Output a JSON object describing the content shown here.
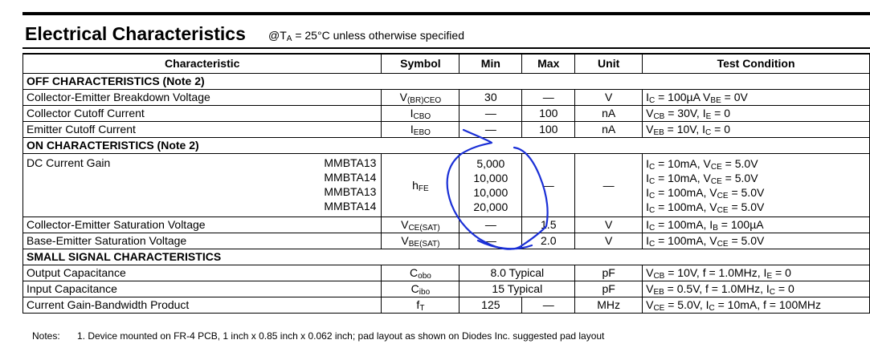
{
  "header": {
    "title": "Electrical Characteristics",
    "condition_prefix": "@T",
    "condition_sub": "A",
    "condition_suffix": " = 25°C unless otherwise specified"
  },
  "table": {
    "headers": [
      "Characteristic",
      "Symbol",
      "Min",
      "Max",
      "Unit",
      "Test Condition"
    ],
    "sections": {
      "off": "OFF CHARACTERISTICS (Note 2)",
      "on": "ON CHARACTERISTICS (Note 2)",
      "small": "SMALL SIGNAL CHARACTERISTICS"
    },
    "rows": {
      "bv": {
        "name": "Collector-Emitter Breakdown Voltage",
        "sym": "V",
        "sym_sub": "(BR)CEO",
        "min": "30",
        "max": "—",
        "unit": "V",
        "cond": [
          [
            "I",
            "C",
            " = 100µA V"
          ],
          [
            "BE",
            " = 0V"
          ]
        ]
      },
      "icbo": {
        "name": "Collector Cutoff Current",
        "sym": "I",
        "sym_sub": "CBO",
        "min": "—",
        "max": "100",
        "unit": "nA",
        "cond": [
          [
            "V",
            "CB",
            " = 30V, I"
          ],
          [
            "E",
            " = 0"
          ]
        ]
      },
      "iebo": {
        "name": "Emitter Cutoff Current",
        "sym": "I",
        "sym_sub": "EBO",
        "min": "—",
        "max": "100",
        "unit": "nA",
        "cond": [
          [
            "V",
            "EB",
            " = 10V, I"
          ],
          [
            "C",
            " = 0"
          ]
        ]
      },
      "hfe": {
        "name": "DC Current Gain",
        "parts": [
          "MMBTA13",
          "MMBTA14",
          "MMBTA13",
          "MMBTA14"
        ],
        "sym": "h",
        "sym_sub": "FE",
        "mins": [
          "5,000",
          "10,000",
          "10,000",
          "20,000"
        ],
        "max": "—",
        "unit": "—",
        "conds": [
          [
            [
              "I",
              "C",
              " =   10mA, V"
            ],
            [
              "CE",
              " = 5.0V"
            ]
          ],
          [
            [
              "I",
              "C",
              " =   10mA, V"
            ],
            [
              "CE",
              " = 5.0V"
            ]
          ],
          [
            [
              "I",
              "C",
              " = 100mA, V"
            ],
            [
              "CE",
              " = 5.0V"
            ]
          ],
          [
            [
              "I",
              "C",
              " = 100mA, V"
            ],
            [
              "CE",
              " = 5.0V"
            ]
          ]
        ]
      },
      "vcesat": {
        "name": "Collector-Emitter Saturation Voltage",
        "sym": "V",
        "sym_sub": "CE(SAT)",
        "min": "—",
        "max": "1.5",
        "unit": "V",
        "cond": [
          [
            "I",
            "C",
            " = 100mA, I"
          ],
          [
            "B",
            " = 100µA"
          ]
        ]
      },
      "vbesat": {
        "name": "Base-Emitter Saturation Voltage",
        "sym": "V",
        "sym_sub": "BE(SAT)",
        "min": "—",
        "max": "2.0",
        "unit": "V",
        "cond": [
          [
            "I",
            "C",
            " = 100mA, V"
          ],
          [
            "CE",
            " = 5.0V"
          ]
        ]
      },
      "cobo": {
        "name": "Output Capacitance",
        "sym": "C",
        "sym_sub": "obo",
        "typ": "8.0 Typical",
        "unit": "pF",
        "cond": [
          [
            "V",
            "CB",
            " = 10V, f = 1.0MHz, I"
          ],
          [
            "E",
            " = 0"
          ]
        ]
      },
      "cibo": {
        "name": "Input Capacitance",
        "sym": "C",
        "sym_sub": "ibo",
        "typ": "15 Typical",
        "unit": "pF",
        "cond": [
          [
            "V",
            "EB",
            " = 0.5V, f = 1.0MHz, I"
          ],
          [
            "C",
            " = 0"
          ]
        ]
      },
      "ft": {
        "name": "Current Gain-Bandwidth Product",
        "sym": "f",
        "sym_sub": "T",
        "min": "125",
        "max": "—",
        "unit": "MHz",
        "cond": [
          [
            "V",
            "CE",
            " = 5.0V, I"
          ],
          [
            "C",
            " = 10mA, f = 100MHz"
          ]
        ]
      }
    }
  },
  "notes": {
    "label": "Notes:",
    "items": [
      "1.  Device mounted on FR-4 PCB, 1 inch x 0.85 inch x 0.062 inch; pad layout as shown on Diodes Inc. suggested pad layout"
    ]
  },
  "annotation": {
    "ink_color": "#1a2fd6"
  }
}
